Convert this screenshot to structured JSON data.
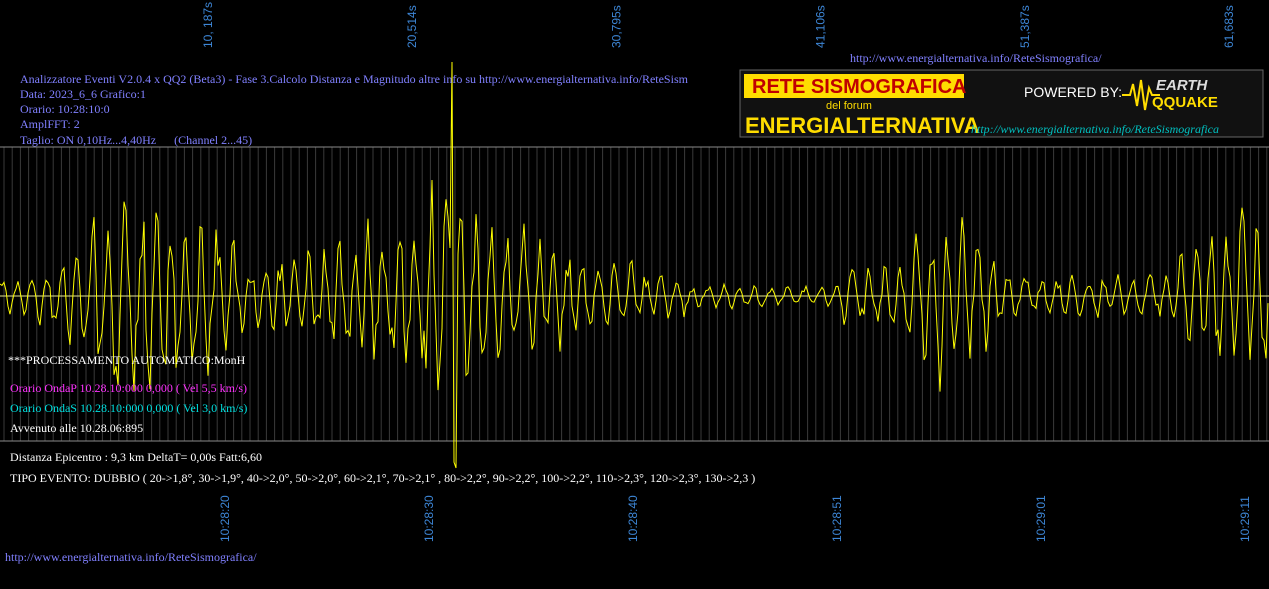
{
  "top_axis": {
    "labels": [
      "10, 187s",
      "20,514s",
      "30,795s",
      "41,106s",
      "51,387s",
      "61,683s"
    ]
  },
  "header": {
    "url": "http://www.energialternativa.info/ReteSismografica/"
  },
  "info": {
    "lines": [
      "Analizzatore Eventi V2.0.4 x QQ2 (Beta3) - Fase 3.Calcolo Distanza e Magnitudo altre info su http://www.energialternativa.info/ReteSism",
      "Data: 2023_6_6 Grafico:1",
      "Orario: 10:28:10:0",
      "AmplFFT: 2",
      "Taglio: ON 0,10Hz...4,40Hz      (Channel 2...45)"
    ]
  },
  "logo": {
    "title": "RETE SISMOGRAFICA",
    "subtitle": "del forum",
    "name": "ENERGIALTERNATIVA",
    "powered": "POWERED BY:",
    "brand_top": "EARTH",
    "brand_bottom": "QQUAKE",
    "url": "http://www.energialternativa.info/ReteSismografica"
  },
  "event": {
    "processing": "***PROCESSAMENTO AUTOMATICO:MonH",
    "wave_p": "Orario OndaP 10.28.10:000  0,000 ( Vel 5,5 km/s)",
    "wave_s": "Orario OndaS 10.28.10:000  0,000 ( Vel 3,0 km/s)",
    "occurred": "Avvenuto alle 10.28.06:895",
    "distance": "Distanza Epicentro : 9,3 km DeltaT= 0,00s  Fatt:6,60",
    "type": "TIPO EVENTO: DUBBIO ( 20->1,8°, 30->1,9°, 40->2,0°, 50->2,0°, 60->2,1°, 70->2,1° , 80->2,2°, 90->2,2°, 100->2,2°, 110->2,3°, 120->2,3°, 130->2,3 )"
  },
  "bottom_axis": {
    "labels": [
      "10:28:20",
      "10:28:30",
      "10:28:40",
      "10:28:51",
      "10:29:01",
      "10:29:11"
    ]
  },
  "footer": {
    "url": "http://www.energialternativa.info/ReteSismografica/"
  }
}
